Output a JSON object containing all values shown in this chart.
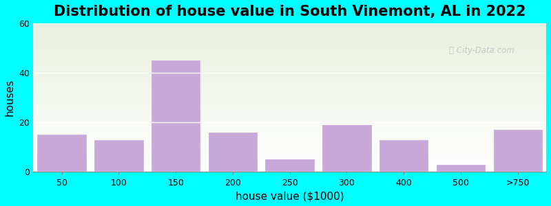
{
  "title": "Distribution of house value in South Vinemont, AL in 2022",
  "xlabel": "house value ($1000)",
  "ylabel": "houses",
  "categories": [
    "50",
    "100",
    "150",
    "200",
    "250",
    "300",
    "400",
    "500",
    ">750"
  ],
  "values": [
    15,
    13,
    45,
    16,
    5,
    19,
    13,
    3,
    17
  ],
  "bar_color": "#C8A8D8",
  "bar_edgecolor": "#C8A8D8",
  "ylim": [
    0,
    60
  ],
  "yticks": [
    0,
    20,
    40,
    60
  ],
  "background_outer": "#00FFFF",
  "plot_bg_top": "#e8f0e0",
  "plot_bg_bottom": "#ffffff",
  "title_fontsize": 15,
  "axis_label_fontsize": 11,
  "tick_fontsize": 9
}
